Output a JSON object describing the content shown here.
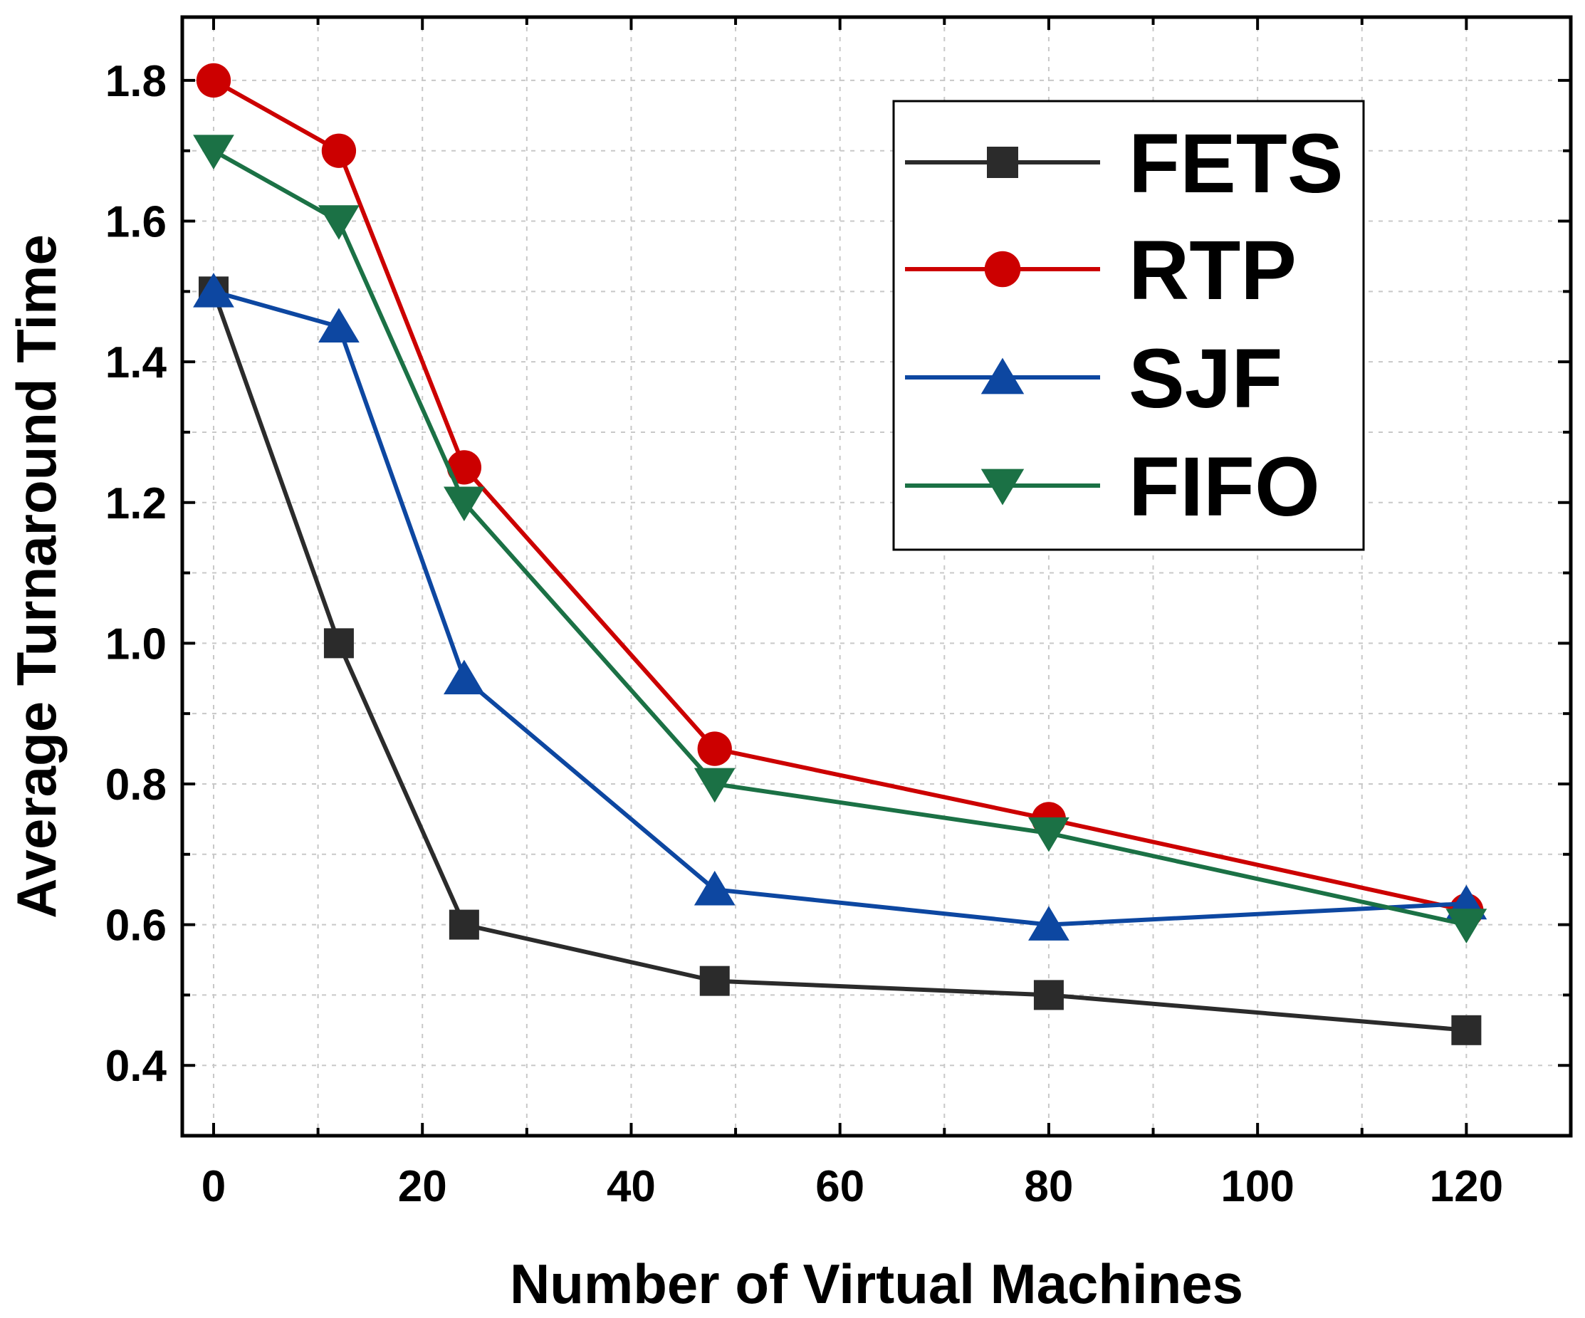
{
  "chart_data": {
    "type": "line",
    "xlabel": "Number of Virtual Machines",
    "ylabel": "Average Turnaround Time",
    "xlim": [
      -3,
      130
    ],
    "ylim": [
      0.3,
      1.89
    ],
    "xticks": [
      0,
      20,
      40,
      60,
      80,
      100,
      120
    ],
    "xtick_labels": [
      "0",
      "20",
      "40",
      "60",
      "80",
      "100",
      "120"
    ],
    "yticks": [
      0.4,
      0.6,
      0.8,
      1.0,
      1.2,
      1.4,
      1.6,
      1.8
    ],
    "ytick_labels": [
      "0.4",
      "0.6",
      "0.8",
      "1.0",
      "1.2",
      "1.4",
      "1.6",
      "1.8"
    ],
    "grid": true,
    "legend_position": "top-right",
    "x": [
      0,
      12,
      24,
      48,
      80,
      120
    ],
    "series": [
      {
        "name": "FETS",
        "color": "#2b2b2b",
        "marker": "square",
        "values": [
          1.5,
          1.0,
          0.6,
          0.52,
          0.5,
          0.45
        ]
      },
      {
        "name": "RTP",
        "color": "#cc0000",
        "marker": "circle",
        "values": [
          1.8,
          1.7,
          1.25,
          0.85,
          0.75,
          0.62
        ]
      },
      {
        "name": "SJF",
        "color": "#0d47a1",
        "marker": "triangle-up",
        "values": [
          1.5,
          1.45,
          0.95,
          0.65,
          0.6,
          0.63
        ]
      },
      {
        "name": "FIFO",
        "color": "#1b7145",
        "marker": "triangle-down",
        "values": [
          1.7,
          1.6,
          1.2,
          0.8,
          0.73,
          0.6
        ]
      }
    ]
  }
}
